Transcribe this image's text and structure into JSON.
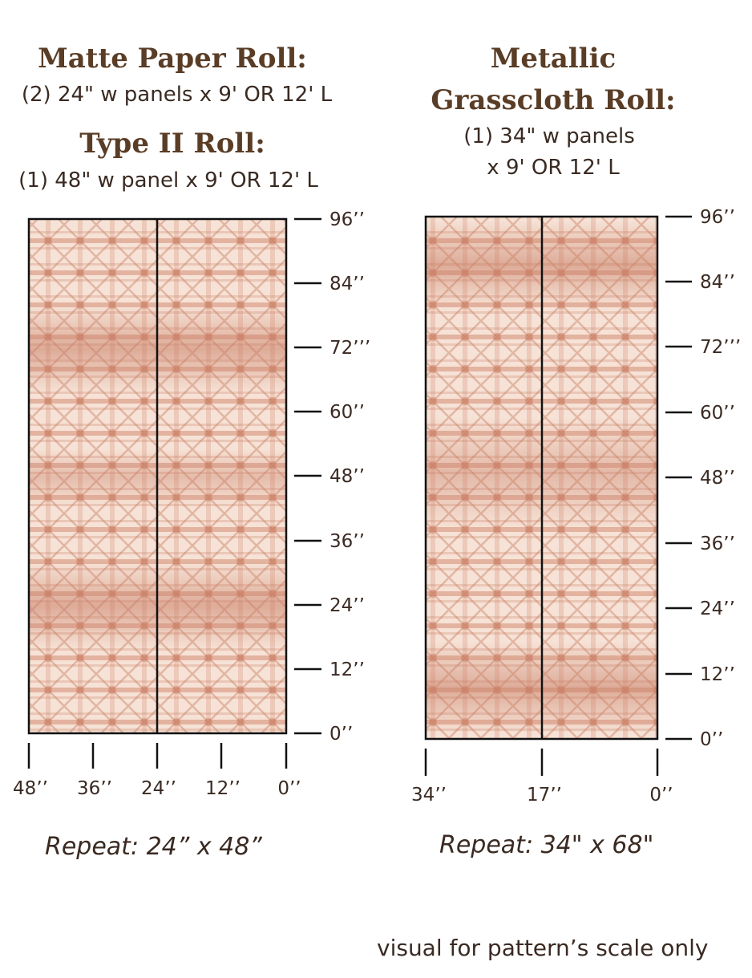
{
  "left": {
    "title1": "Matte Paper Roll:",
    "sub1": "(2) 24\" w panels x 9' OR 12' L",
    "title2": "Type II Roll:",
    "sub2": "(1) 48\" w panel x 9' OR 12' L",
    "vertical_ticks": [
      "96’’",
      "84’’",
      "72’’’",
      "60’’",
      "48’’",
      "36’’",
      "24’’",
      "12’’",
      "0’’"
    ],
    "horizontal_ticks": [
      "48’’",
      "36’’",
      "24’’",
      "12’’",
      "0’’"
    ],
    "repeat": "Repeat: 24” x 48”"
  },
  "right": {
    "title_line1": "Metallic",
    "title_line2": "Grasscloth Roll:",
    "sub_line1": "(1) 34\" w panels",
    "sub_line2": "x 9' OR 12' L",
    "vertical_ticks": [
      "96’’",
      "84’’",
      "72’’’",
      "60’’",
      "48’’",
      "36’’",
      "24’’",
      "12’’",
      "0’’"
    ],
    "horizontal_ticks": [
      "34’’",
      "17’’",
      "0’’"
    ],
    "repeat": "Repeat: 34\" x 68\""
  },
  "note": "visual for pattern’s scale only",
  "colors": {
    "title": "#5a3d26",
    "pattern_base": "#f6e2d6",
    "pattern_dye": "#c97f66"
  }
}
